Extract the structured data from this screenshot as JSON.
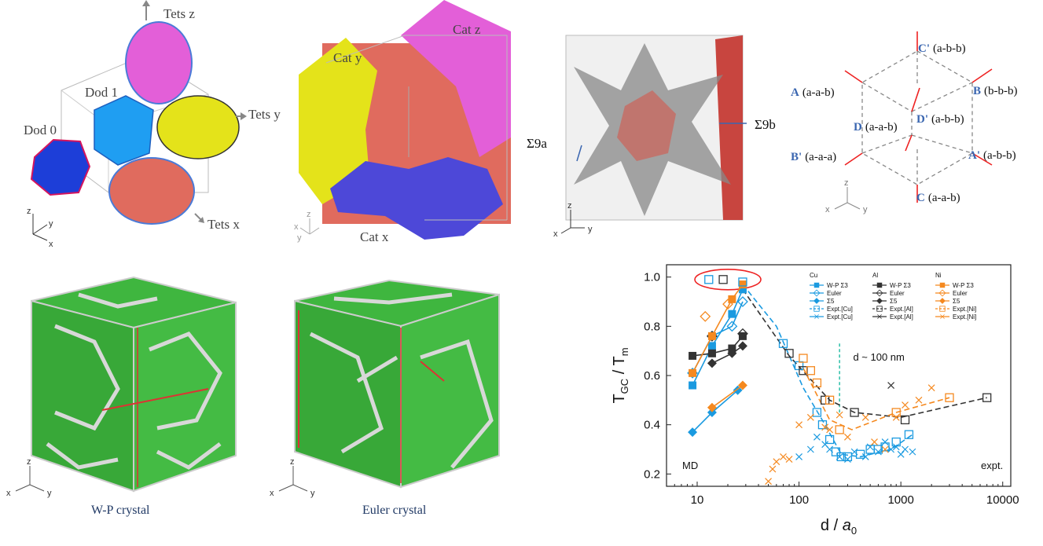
{
  "panel_a": {
    "labels": [
      "Tets z",
      "Dod 1",
      "Tets y",
      "Dod 0",
      "Tets x"
    ],
    "axes": [
      "z",
      "y",
      "x"
    ]
  },
  "panel_b": {
    "labels": [
      "Cat z",
      "Cat y",
      "Cat x"
    ],
    "axes": [
      "z",
      "x",
      "y"
    ]
  },
  "panel_c": {
    "labels": [
      "Σ9a",
      "Σ9b"
    ],
    "axes": [
      "z",
      "x",
      "y"
    ]
  },
  "panel_d": {
    "points": [
      {
        "id": "C'",
        "ori": "(a-b-b)"
      },
      {
        "id": "A",
        "ori": "(a-a-b)"
      },
      {
        "id": "B",
        "ori": "(b-b-b)"
      },
      {
        "id": "D",
        "ori": "(a-a-b)"
      },
      {
        "id": "D'",
        "ori": "(a-b-b)"
      },
      {
        "id": "B'",
        "ori": "(a-a-a)"
      },
      {
        "id": "A'",
        "ori": "(a-b-b)"
      },
      {
        "id": "C",
        "ori": "(a-a-b)"
      }
    ],
    "axes": [
      "z",
      "x",
      "y"
    ]
  },
  "panel_e": {
    "caption": "W-P crystal",
    "axes": [
      "z",
      "x",
      "y"
    ],
    "grain_color": "#3fb63f"
  },
  "panel_f": {
    "caption": "Euler crystal",
    "axes": [
      "z",
      "x",
      "y"
    ],
    "grain_color": "#3fb63f"
  },
  "chart_data": {
    "type": "scatter",
    "xscale": "log",
    "xlim": [
      5,
      12000
    ],
    "ylim": [
      0.15,
      1.05
    ],
    "xticks": [
      "10",
      "100",
      "1000",
      "10000"
    ],
    "yticks": [
      "0.2",
      "0.4",
      "0.6",
      "0.8",
      "1.0"
    ],
    "ylabel_main": "T",
    "ylabel_sub1": "GC",
    "ylabel_mid": " / T",
    "ylabel_sub2": "m",
    "xlabel_main": "d / ",
    "xlabel_italic": "a",
    "xlabel_sub": "0",
    "annotations": {
      "left": "MD",
      "right": "expt.",
      "cutoff": "d ~ 100 nm"
    },
    "legend_groups": [
      "Cu",
      "Al",
      "Ni"
    ],
    "legend_entries": [
      "W-P Σ3",
      "Euler",
      "Σ5",
      "Expt.[Cu]",
      "Expt.[Cu]"
    ],
    "legend_entries_al": [
      "W-P Σ3",
      "Euler",
      "Σ5",
      "Expt.[Al]",
      "Expt.[Al]"
    ],
    "legend_entries_ni": [
      "W-P Σ3",
      "Euler",
      "Σ5",
      "Expt.[Ni]",
      "Expt.[Ni]"
    ],
    "colors": {
      "Cu": "#1a9ae0",
      "Al": "#333333",
      "Ni": "#f5891f"
    },
    "series": [
      {
        "name": "W-P Σ3",
        "group": "Cu",
        "marker": "square-filled",
        "x": [
          9,
          14,
          22,
          28
        ],
        "y": [
          0.56,
          0.72,
          0.85,
          0.95
        ]
      },
      {
        "name": "Euler",
        "group": "Cu",
        "marker": "diamond-open",
        "x": [
          9,
          14,
          22,
          28
        ],
        "y": [
          0.61,
          0.76,
          0.8,
          0.9
        ]
      },
      {
        "name": "Σ5",
        "group": "Cu",
        "marker": "diamond-filled",
        "x": [
          9,
          14,
          25
        ],
        "y": [
          0.37,
          0.45,
          0.54
        ]
      },
      {
        "name": "W-P Σ3",
        "group": "Al",
        "marker": "square-filled",
        "x": [
          9,
          14,
          22,
          28
        ],
        "y": [
          0.68,
          0.69,
          0.71,
          0.76
        ]
      },
      {
        "name": "Euler",
        "group": "Al",
        "marker": "diamond-open",
        "x": [
          14,
          28
        ],
        "y": [
          0.76,
          0.77
        ]
      },
      {
        "name": "Σ5",
        "group": "Al",
        "marker": "diamond-filled",
        "x": [
          14,
          22,
          28
        ],
        "y": [
          0.65,
          0.69,
          0.72
        ]
      },
      {
        "name": "W-P Σ3",
        "group": "Ni",
        "marker": "square-filled",
        "x": [
          9,
          14,
          22,
          28
        ],
        "y": [
          0.61,
          0.76,
          0.91,
          0.97
        ]
      },
      {
        "name": "Euler",
        "group": "Ni",
        "marker": "diamond-open",
        "x": [
          12,
          20
        ],
        "y": [
          0.84,
          0.89
        ]
      },
      {
        "name": "Σ5",
        "group": "Ni",
        "marker": "diamond-filled",
        "x": [
          14,
          28
        ],
        "y": [
          0.47,
          0.56
        ]
      },
      {
        "name": "Expt.[Cu]",
        "group": "Cu",
        "marker": "square-open",
        "x": [
          13,
          28,
          70,
          100,
          150,
          170,
          200,
          230,
          260,
          300,
          400,
          500,
          600,
          700,
          900,
          1200
        ],
        "y": [
          0.99,
          0.98,
          0.73,
          0.64,
          0.45,
          0.4,
          0.34,
          0.29,
          0.27,
          0.27,
          0.28,
          0.3,
          0.3,
          0.31,
          0.33,
          0.36
        ]
      },
      {
        "name": "Expt.[Cu]",
        "group": "Cu",
        "marker": "x",
        "x": [
          100,
          130,
          150,
          180,
          200,
          250,
          300,
          350,
          450,
          500,
          600,
          700,
          800,
          900,
          1000,
          1100,
          1300
        ],
        "y": [
          0.27,
          0.3,
          0.35,
          0.32,
          0.3,
          0.27,
          0.26,
          0.29,
          0.27,
          0.31,
          0.29,
          0.33,
          0.3,
          0.31,
          0.28,
          0.3,
          0.29
        ]
      },
      {
        "name": "Expt.[Al]",
        "group": "Al",
        "marker": "square-open",
        "x": [
          18,
          80,
          110,
          180,
          350,
          1100,
          7000
        ],
        "y": [
          0.99,
          0.69,
          0.62,
          0.5,
          0.45,
          0.42,
          0.51
        ]
      },
      {
        "name": "Expt.[Al]",
        "group": "Al",
        "marker": "x",
        "x": [
          800
        ],
        "y": [
          0.56
        ]
      },
      {
        "name": "Expt.[Ni]",
        "group": "Ni",
        "marker": "square-open",
        "x": [
          110,
          130,
          150,
          200,
          250,
          900,
          3000
        ],
        "y": [
          0.67,
          0.62,
          0.57,
          0.5,
          0.38,
          0.45,
          0.51
        ]
      },
      {
        "name": "Expt.[Ni]",
        "group": "Ni",
        "marker": "x",
        "x": [
          50,
          55,
          60,
          70,
          80,
          100,
          130,
          180,
          200,
          250,
          300,
          450,
          550,
          700,
          900,
          1100,
          1500,
          2000
        ],
        "y": [
          0.17,
          0.22,
          0.25,
          0.27,
          0.26,
          0.4,
          0.43,
          0.39,
          0.38,
          0.44,
          0.35,
          0.43,
          0.33,
          0.3,
          0.43,
          0.48,
          0.5,
          0.55
        ]
      }
    ],
    "dashed_fits": [
      {
        "group": "Cu",
        "x": [
          28,
          60,
          110,
          180,
          260,
          400,
          800,
          1300
        ],
        "y": [
          0.97,
          0.8,
          0.55,
          0.4,
          0.28,
          0.27,
          0.3,
          0.36
        ]
      },
      {
        "group": "Al",
        "x": [
          28,
          80,
          200,
          350,
          1000,
          7000
        ],
        "y": [
          0.95,
          0.68,
          0.5,
          0.45,
          0.43,
          0.51
        ]
      },
      {
        "group": "Ni",
        "x": [
          110,
          200,
          330,
          900,
          3000
        ],
        "y": [
          0.63,
          0.42,
          0.38,
          0.45,
          0.51
        ]
      }
    ],
    "cutoff_x": 250
  }
}
